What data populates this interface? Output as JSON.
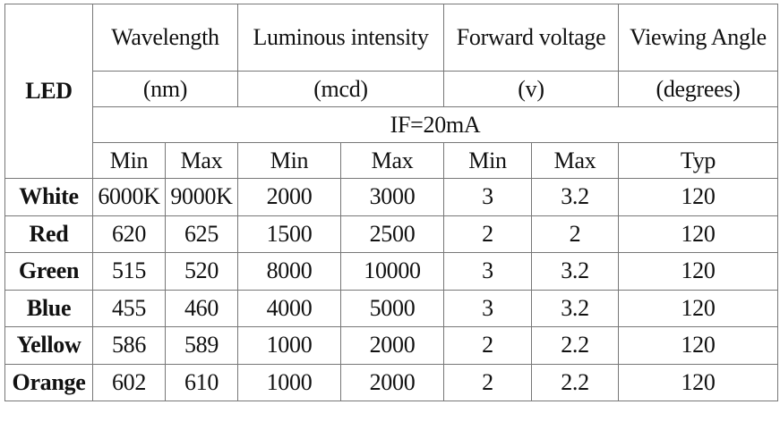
{
  "table": {
    "led_header": "LED",
    "groups": [
      {
        "name": "Wavelength",
        "unit": "(nm)"
      },
      {
        "name": "Luminous intensity",
        "unit": "(mcd)"
      },
      {
        "name": "Forward voltage",
        "unit": "(v)"
      },
      {
        "name": "Viewing Angle",
        "unit": "(degrees)"
      }
    ],
    "condition": "IF=20mA",
    "subheaders": [
      "Min",
      "Max",
      "Min",
      "Max",
      "Min",
      "Max",
      "Typ"
    ],
    "rows": [
      [
        "White",
        "6000K",
        "9000K",
        "2000",
        "3000",
        "3",
        "3.2",
        "120"
      ],
      [
        "Red",
        "620",
        "625",
        "1500",
        "2500",
        "2",
        "2",
        "120"
      ],
      [
        "Green",
        "515",
        "520",
        "8000",
        "10000",
        "3",
        "3.2",
        "120"
      ],
      [
        "Blue",
        "455",
        "460",
        "4000",
        "5000",
        "3",
        "3.2",
        "120"
      ],
      [
        "Yellow",
        "586",
        "589",
        "1000",
        "2000",
        "2",
        "2.2",
        "120"
      ],
      [
        "Orange",
        "602",
        "610",
        "1000",
        "2000",
        "2",
        "2.2",
        "120"
      ]
    ]
  }
}
